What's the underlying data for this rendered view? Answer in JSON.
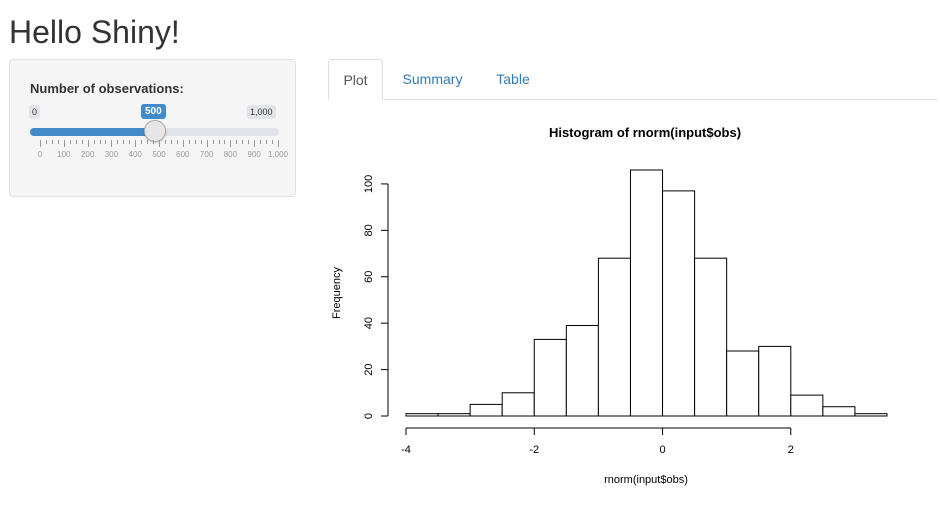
{
  "app": {
    "title": "Hello Shiny!"
  },
  "sidebar": {
    "slider": {
      "label": "Number of observations:",
      "min_label": "0",
      "max_label": "1,000",
      "value_label": "500",
      "value": 500,
      "min": 0,
      "max": 1000,
      "tick_labels": [
        "0",
        "100",
        "200",
        "300",
        "400",
        "500",
        "600",
        "700",
        "800",
        "900",
        "1,000"
      ]
    }
  },
  "tabs": [
    {
      "label": "Plot",
      "active": true
    },
    {
      "label": "Summary",
      "active": false
    },
    {
      "label": "Table",
      "active": false
    }
  ],
  "colors": {
    "accent": "#428bca",
    "link": "#337ab7",
    "panel_bg": "#f5f5f5"
  },
  "chart_data": {
    "type": "bar",
    "title": "Histogram of rnorm(input$obs)",
    "xlabel": "rnorm(input$obs)",
    "ylabel": "Frequency",
    "bin_edges": [
      -4,
      -3.5,
      -3,
      -2.5,
      -2,
      -1.5,
      -1,
      -0.5,
      0,
      0.5,
      1,
      1.5,
      2,
      2.5,
      3,
      3.5
    ],
    "values": [
      1,
      1,
      5,
      10,
      33,
      39,
      68,
      106,
      97,
      68,
      28,
      30,
      9,
      4,
      1
    ],
    "xticks": [
      -4,
      -2,
      0,
      2
    ],
    "yticks": [
      0,
      20,
      40,
      60,
      80,
      100
    ],
    "xlim": [
      -4,
      3.5
    ],
    "ylim": [
      0,
      106
    ]
  }
}
